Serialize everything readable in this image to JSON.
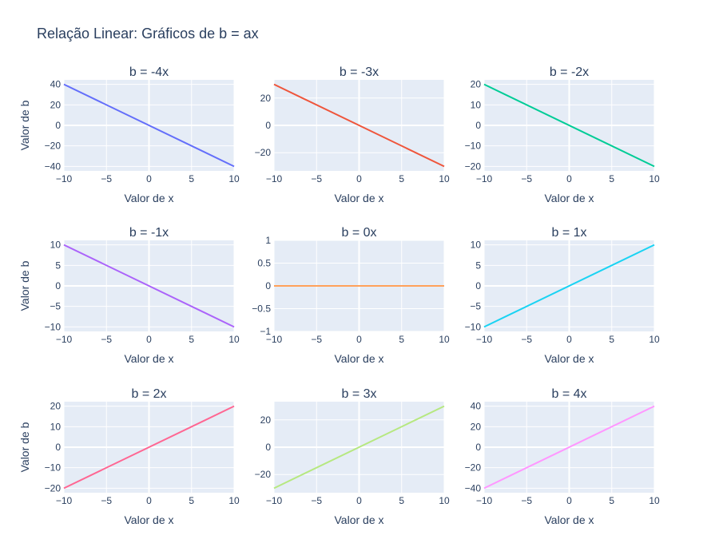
{
  "title": "Relação Linear: Gráficos de b = ax",
  "style": {
    "plot_bg": "#e5ecf6",
    "grid": "#ffffff",
    "text": "#2a3f5f"
  },
  "chart_data": [
    {
      "type": "line",
      "title": "b = -4x",
      "xlabel": "Valor de x",
      "ylabel": "Valor de b",
      "x": [
        -10,
        10
      ],
      "series": [
        {
          "values": [
            40,
            -40
          ],
          "color": "#636efa"
        }
      ],
      "xlim": [
        -10,
        10
      ],
      "ylim": [
        -44.4,
        44.4
      ],
      "xticks": [
        -10,
        -5,
        0,
        5,
        10
      ],
      "yticks": [
        -40,
        -20,
        0,
        20,
        40
      ],
      "xticklabels": [
        "−10",
        "−5",
        "0",
        "5",
        "10"
      ],
      "yticklabels": [
        "−40",
        "−20",
        "0",
        "20",
        "40"
      ]
    },
    {
      "type": "line",
      "title": "b = -3x",
      "xlabel": "Valor de x",
      "ylabel": "",
      "x": [
        -10,
        10
      ],
      "series": [
        {
          "values": [
            30,
            -30
          ],
          "color": "#ef553b"
        }
      ],
      "xlim": [
        -10,
        10
      ],
      "ylim": [
        -33.3,
        33.3
      ],
      "xticks": [
        -10,
        -5,
        0,
        5,
        10
      ],
      "yticks": [
        -20,
        0,
        20
      ],
      "xticklabels": [
        "−10",
        "−5",
        "0",
        "5",
        "10"
      ],
      "yticklabels": [
        "−20",
        "0",
        "20"
      ]
    },
    {
      "type": "line",
      "title": "b = -2x",
      "xlabel": "Valor de x",
      "ylabel": "",
      "x": [
        -10,
        10
      ],
      "series": [
        {
          "values": [
            20,
            -20
          ],
          "color": "#00cc96"
        }
      ],
      "xlim": [
        -10,
        10
      ],
      "ylim": [
        -22.2,
        22.2
      ],
      "xticks": [
        -10,
        -5,
        0,
        5,
        10
      ],
      "yticks": [
        -20,
        -10,
        0,
        10,
        20
      ],
      "xticklabels": [
        "−10",
        "−5",
        "0",
        "5",
        "10"
      ],
      "yticklabels": [
        "−20",
        "−10",
        "0",
        "10",
        "20"
      ]
    },
    {
      "type": "line",
      "title": "b = -1x",
      "xlabel": "Valor de x",
      "ylabel": "Valor de b",
      "x": [
        -10,
        10
      ],
      "series": [
        {
          "values": [
            10,
            -10
          ],
          "color": "#ab63fa"
        }
      ],
      "xlim": [
        -10,
        10
      ],
      "ylim": [
        -11.1,
        11.1
      ],
      "xticks": [
        -10,
        -5,
        0,
        5,
        10
      ],
      "yticks": [
        -10,
        -5,
        0,
        5,
        10
      ],
      "xticklabels": [
        "−10",
        "−5",
        "0",
        "5",
        "10"
      ],
      "yticklabels": [
        "−10",
        "−5",
        "0",
        "5",
        "10"
      ]
    },
    {
      "type": "line",
      "title": "b = 0x",
      "xlabel": "Valor de x",
      "ylabel": "",
      "x": [
        -10,
        10
      ],
      "series": [
        {
          "values": [
            0,
            0
          ],
          "color": "#ffa15a"
        }
      ],
      "xlim": [
        -10,
        10
      ],
      "ylim": [
        -1,
        1
      ],
      "xticks": [
        -10,
        -5,
        0,
        5,
        10
      ],
      "yticks": [
        -1,
        -0.5,
        0,
        0.5,
        1
      ],
      "xticklabels": [
        "−10",
        "−5",
        "0",
        "5",
        "10"
      ],
      "yticklabels": [
        "−1",
        "−0.5",
        "0",
        "0.5",
        "1"
      ]
    },
    {
      "type": "line",
      "title": "b = 1x",
      "xlabel": "Valor de x",
      "ylabel": "",
      "x": [
        -10,
        10
      ],
      "series": [
        {
          "values": [
            -10,
            10
          ],
          "color": "#19d3f3"
        }
      ],
      "xlim": [
        -10,
        10
      ],
      "ylim": [
        -11.1,
        11.1
      ],
      "xticks": [
        -10,
        -5,
        0,
        5,
        10
      ],
      "yticks": [
        -10,
        -5,
        0,
        5,
        10
      ],
      "xticklabels": [
        "−10",
        "−5",
        "0",
        "5",
        "10"
      ],
      "yticklabels": [
        "−10",
        "−5",
        "0",
        "5",
        "10"
      ]
    },
    {
      "type": "line",
      "title": "b = 2x",
      "xlabel": "Valor de x",
      "ylabel": "Valor de b",
      "x": [
        -10,
        10
      ],
      "series": [
        {
          "values": [
            -20,
            20
          ],
          "color": "#ff6692"
        }
      ],
      "xlim": [
        -10,
        10
      ],
      "ylim": [
        -22.2,
        22.2
      ],
      "xticks": [
        -10,
        -5,
        0,
        5,
        10
      ],
      "yticks": [
        -20,
        -10,
        0,
        10,
        20
      ],
      "xticklabels": [
        "−10",
        "−5",
        "0",
        "5",
        "10"
      ],
      "yticklabels": [
        "−20",
        "−10",
        "0",
        "10",
        "20"
      ]
    },
    {
      "type": "line",
      "title": "b = 3x",
      "xlabel": "Valor de x",
      "ylabel": "",
      "x": [
        -10,
        10
      ],
      "series": [
        {
          "values": [
            -30,
            30
          ],
          "color": "#b6e880"
        }
      ],
      "xlim": [
        -10,
        10
      ],
      "ylim": [
        -33.3,
        33.3
      ],
      "xticks": [
        -10,
        -5,
        0,
        5,
        10
      ],
      "yticks": [
        -20,
        0,
        20
      ],
      "xticklabels": [
        "−10",
        "−5",
        "0",
        "5",
        "10"
      ],
      "yticklabels": [
        "−20",
        "0",
        "20"
      ]
    },
    {
      "type": "line",
      "title": "b = 4x",
      "xlabel": "Valor de x",
      "ylabel": "",
      "x": [
        -10,
        10
      ],
      "series": [
        {
          "values": [
            -40,
            40
          ],
          "color": "#ff97ff"
        }
      ],
      "xlim": [
        -10,
        10
      ],
      "ylim": [
        -44.4,
        44.4
      ],
      "xticks": [
        -10,
        -5,
        0,
        5,
        10
      ],
      "yticks": [
        -40,
        -20,
        0,
        20,
        40
      ],
      "xticklabels": [
        "−10",
        "−5",
        "0",
        "5",
        "10"
      ],
      "yticklabels": [
        "−40",
        "−20",
        "0",
        "20",
        "40"
      ]
    }
  ]
}
